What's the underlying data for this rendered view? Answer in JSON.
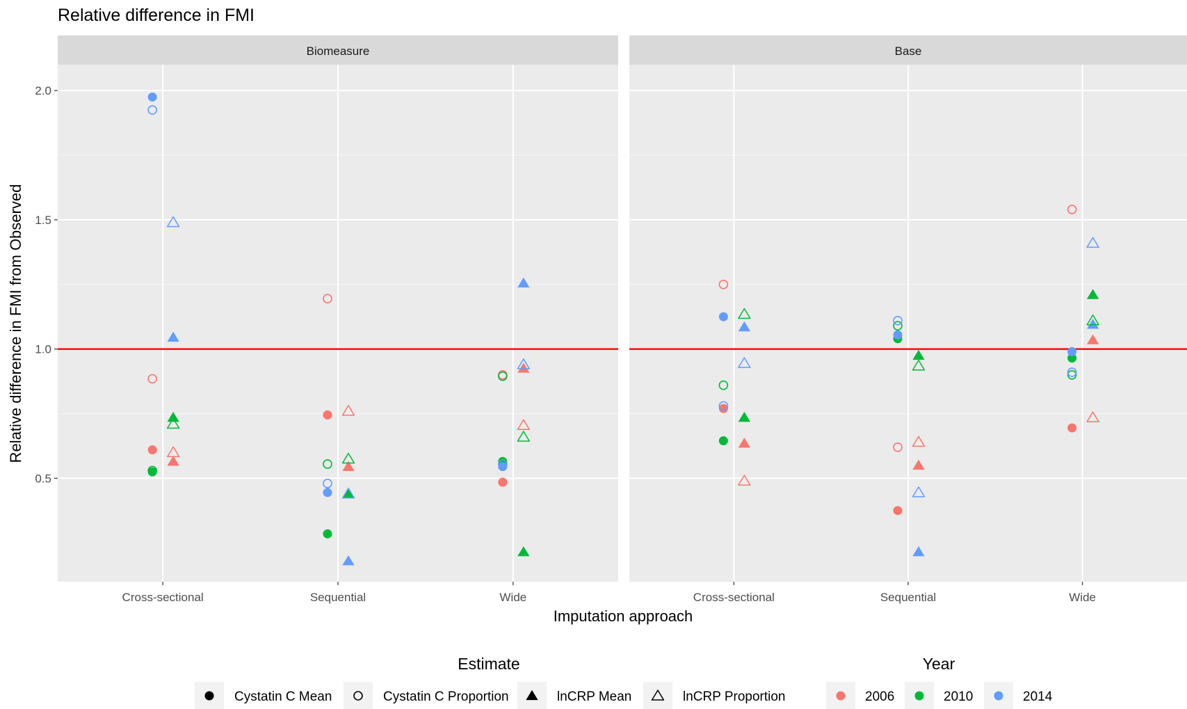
{
  "chart_data": {
    "type": "scatter",
    "title": "Relative difference in FMI",
    "xlabel": "Imputation approach",
    "ylabel": "Relative difference in FMI from Observed",
    "ylim": [
      0.1,
      2.1
    ],
    "yticks": [
      0.5,
      1.0,
      1.5,
      2.0
    ],
    "ytick_labels": [
      "0.5",
      "1.0",
      "1.5",
      "2.0"
    ],
    "categories": [
      "Cross-sectional",
      "Sequential",
      "Wide"
    ],
    "reference_line": {
      "y": 1.0,
      "color": "#ff0000"
    },
    "grid": true,
    "panels": [
      {
        "label": "Biomeasure",
        "points": [
          {
            "x": "Cross-sectional",
            "estimate": "Cystatin C Mean",
            "year": "2006",
            "y": 0.61
          },
          {
            "x": "Cross-sectional",
            "estimate": "Cystatin C Mean",
            "year": "2010",
            "y": 0.525
          },
          {
            "x": "Cross-sectional",
            "estimate": "Cystatin C Mean",
            "year": "2014",
            "y": 1.975
          },
          {
            "x": "Cross-sectional",
            "estimate": "Cystatin C Proportion",
            "year": "2006",
            "y": 0.885
          },
          {
            "x": "Cross-sectional",
            "estimate": "Cystatin C Proportion",
            "year": "2010",
            "y": 0.53
          },
          {
            "x": "Cross-sectional",
            "estimate": "Cystatin C Proportion",
            "year": "2014",
            "y": 1.925
          },
          {
            "x": "Cross-sectional",
            "estimate": "lnCRP Mean",
            "year": "2006",
            "y": 0.565
          },
          {
            "x": "Cross-sectional",
            "estimate": "lnCRP Mean",
            "year": "2010",
            "y": 0.735
          },
          {
            "x": "Cross-sectional",
            "estimate": "lnCRP Mean",
            "year": "2014",
            "y": 1.045
          },
          {
            "x": "Cross-sectional",
            "estimate": "lnCRP Proportion",
            "year": "2006",
            "y": 0.6
          },
          {
            "x": "Cross-sectional",
            "estimate": "lnCRP Proportion",
            "year": "2010",
            "y": 0.71
          },
          {
            "x": "Cross-sectional",
            "estimate": "lnCRP Proportion",
            "year": "2014",
            "y": 1.49
          },
          {
            "x": "Sequential",
            "estimate": "Cystatin C Mean",
            "year": "2006",
            "y": 0.745
          },
          {
            "x": "Sequential",
            "estimate": "Cystatin C Mean",
            "year": "2010",
            "y": 0.285
          },
          {
            "x": "Sequential",
            "estimate": "Cystatin C Mean",
            "year": "2014",
            "y": 0.445
          },
          {
            "x": "Sequential",
            "estimate": "Cystatin C Proportion",
            "year": "2006",
            "y": 1.195
          },
          {
            "x": "Sequential",
            "estimate": "Cystatin C Proportion",
            "year": "2010",
            "y": 0.555
          },
          {
            "x": "Sequential",
            "estimate": "Cystatin C Proportion",
            "year": "2014",
            "y": 0.48
          },
          {
            "x": "Sequential",
            "estimate": "lnCRP Mean",
            "year": "2006",
            "y": 0.545
          },
          {
            "x": "Sequential",
            "estimate": "lnCRP Mean",
            "year": "2010",
            "y": 0.44
          },
          {
            "x": "Sequential",
            "estimate": "lnCRP Mean",
            "year": "2014",
            "y": 0.18
          },
          {
            "x": "Sequential",
            "estimate": "lnCRP Proportion",
            "year": "2006",
            "y": 0.76
          },
          {
            "x": "Sequential",
            "estimate": "lnCRP Proportion",
            "year": "2010",
            "y": 0.575
          },
          {
            "x": "Sequential",
            "estimate": "lnCRP Proportion",
            "year": "2014",
            "y": 0.44
          },
          {
            "x": "Wide",
            "estimate": "Cystatin C Mean",
            "year": "2006",
            "y": 0.485
          },
          {
            "x": "Wide",
            "estimate": "Cystatin C Mean",
            "year": "2010",
            "y": 0.565
          },
          {
            "x": "Wide",
            "estimate": "Cystatin C Mean",
            "year": "2014",
            "y": 0.545
          },
          {
            "x": "Wide",
            "estimate": "Cystatin C Proportion",
            "year": "2006",
            "y": 0.9
          },
          {
            "x": "Wide",
            "estimate": "Cystatin C Proportion",
            "year": "2010",
            "y": 0.895
          },
          {
            "x": "Wide",
            "estimate": "Cystatin C Proportion",
            "year": "2014",
            "y": 0.555
          },
          {
            "x": "Wide",
            "estimate": "lnCRP Mean",
            "year": "2006",
            "y": 0.925
          },
          {
            "x": "Wide",
            "estimate": "lnCRP Mean",
            "year": "2010",
            "y": 0.215
          },
          {
            "x": "Wide",
            "estimate": "lnCRP Mean",
            "year": "2014",
            "y": 1.255
          },
          {
            "x": "Wide",
            "estimate": "lnCRP Proportion",
            "year": "2006",
            "y": 0.705
          },
          {
            "x": "Wide",
            "estimate": "lnCRP Proportion",
            "year": "2010",
            "y": 0.66
          },
          {
            "x": "Wide",
            "estimate": "lnCRP Proportion",
            "year": "2014",
            "y": 0.94
          }
        ]
      },
      {
        "label": "Base",
        "points": [
          {
            "x": "Cross-sectional",
            "estimate": "Cystatin C Mean",
            "year": "2006",
            "y": 0.77
          },
          {
            "x": "Cross-sectional",
            "estimate": "Cystatin C Mean",
            "year": "2010",
            "y": 0.645
          },
          {
            "x": "Cross-sectional",
            "estimate": "Cystatin C Mean",
            "year": "2014",
            "y": 1.125
          },
          {
            "x": "Cross-sectional",
            "estimate": "Cystatin C Proportion",
            "year": "2006",
            "y": 1.25
          },
          {
            "x": "Cross-sectional",
            "estimate": "Cystatin C Proportion",
            "year": "2010",
            "y": 0.86
          },
          {
            "x": "Cross-sectional",
            "estimate": "Cystatin C Proportion",
            "year": "2014",
            "y": 0.78
          },
          {
            "x": "Cross-sectional",
            "estimate": "lnCRP Mean",
            "year": "2006",
            "y": 0.635
          },
          {
            "x": "Cross-sectional",
            "estimate": "lnCRP Mean",
            "year": "2010",
            "y": 0.735
          },
          {
            "x": "Cross-sectional",
            "estimate": "lnCRP Mean",
            "year": "2014",
            "y": 1.085
          },
          {
            "x": "Cross-sectional",
            "estimate": "lnCRP Proportion",
            "year": "2006",
            "y": 0.49
          },
          {
            "x": "Cross-sectional",
            "estimate": "lnCRP Proportion",
            "year": "2010",
            "y": 1.135
          },
          {
            "x": "Cross-sectional",
            "estimate": "lnCRP Proportion",
            "year": "2014",
            "y": 0.945
          },
          {
            "x": "Sequential",
            "estimate": "Cystatin C Mean",
            "year": "2006",
            "y": 0.375
          },
          {
            "x": "Sequential",
            "estimate": "Cystatin C Mean",
            "year": "2010",
            "y": 1.04
          },
          {
            "x": "Sequential",
            "estimate": "Cystatin C Mean",
            "year": "2014",
            "y": 1.055
          },
          {
            "x": "Sequential",
            "estimate": "Cystatin C Proportion",
            "year": "2006",
            "y": 0.62
          },
          {
            "x": "Sequential",
            "estimate": "Cystatin C Proportion",
            "year": "2010",
            "y": 1.09
          },
          {
            "x": "Sequential",
            "estimate": "Cystatin C Proportion",
            "year": "2014",
            "y": 1.11
          },
          {
            "x": "Sequential",
            "estimate": "lnCRP Mean",
            "year": "2006",
            "y": 0.55
          },
          {
            "x": "Sequential",
            "estimate": "lnCRP Mean",
            "year": "2010",
            "y": 0.975
          },
          {
            "x": "Sequential",
            "estimate": "lnCRP Mean",
            "year": "2014",
            "y": 0.215
          },
          {
            "x": "Sequential",
            "estimate": "lnCRP Proportion",
            "year": "2006",
            "y": 0.64
          },
          {
            "x": "Sequential",
            "estimate": "lnCRP Proportion",
            "year": "2010",
            "y": 0.935
          },
          {
            "x": "Sequential",
            "estimate": "lnCRP Proportion",
            "year": "2014",
            "y": 0.445
          },
          {
            "x": "Wide",
            "estimate": "Cystatin C Mean",
            "year": "2006",
            "y": 0.695
          },
          {
            "x": "Wide",
            "estimate": "Cystatin C Mean",
            "year": "2010",
            "y": 0.965
          },
          {
            "x": "Wide",
            "estimate": "Cystatin C Mean",
            "year": "2014",
            "y": 0.99
          },
          {
            "x": "Wide",
            "estimate": "Cystatin C Proportion",
            "year": "2006",
            "y": 1.54
          },
          {
            "x": "Wide",
            "estimate": "Cystatin C Proportion",
            "year": "2010",
            "y": 0.9
          },
          {
            "x": "Wide",
            "estimate": "Cystatin C Proportion",
            "year": "2014",
            "y": 0.91
          },
          {
            "x": "Wide",
            "estimate": "lnCRP Mean",
            "year": "2006",
            "y": 1.035
          },
          {
            "x": "Wide",
            "estimate": "lnCRP Mean",
            "year": "2010",
            "y": 1.21
          },
          {
            "x": "Wide",
            "estimate": "lnCRP Mean",
            "year": "2014",
            "y": 1.095
          },
          {
            "x": "Wide",
            "estimate": "lnCRP Proportion",
            "year": "2006",
            "y": 0.735
          },
          {
            "x": "Wide",
            "estimate": "lnCRP Proportion",
            "year": "2010",
            "y": 1.11
          },
          {
            "x": "Wide",
            "estimate": "lnCRP Proportion",
            "year": "2014",
            "y": 1.41
          }
        ]
      }
    ],
    "legends": [
      {
        "title": "Estimate",
        "entries": [
          {
            "label": "Cystatin C Mean",
            "shape": "circle-filled"
          },
          {
            "label": "Cystatin C Proportion",
            "shape": "circle-open"
          },
          {
            "label": "lnCRP Mean",
            "shape": "triangle-filled"
          },
          {
            "label": "lnCRP Proportion",
            "shape": "triangle-open"
          }
        ]
      },
      {
        "title": "Year",
        "entries": [
          {
            "label": "2006",
            "color": "#f8766d"
          },
          {
            "label": "2010",
            "color": "#00ba38"
          },
          {
            "label": "2014",
            "color": "#619cff"
          }
        ]
      }
    ],
    "legend_position": "bottom"
  }
}
